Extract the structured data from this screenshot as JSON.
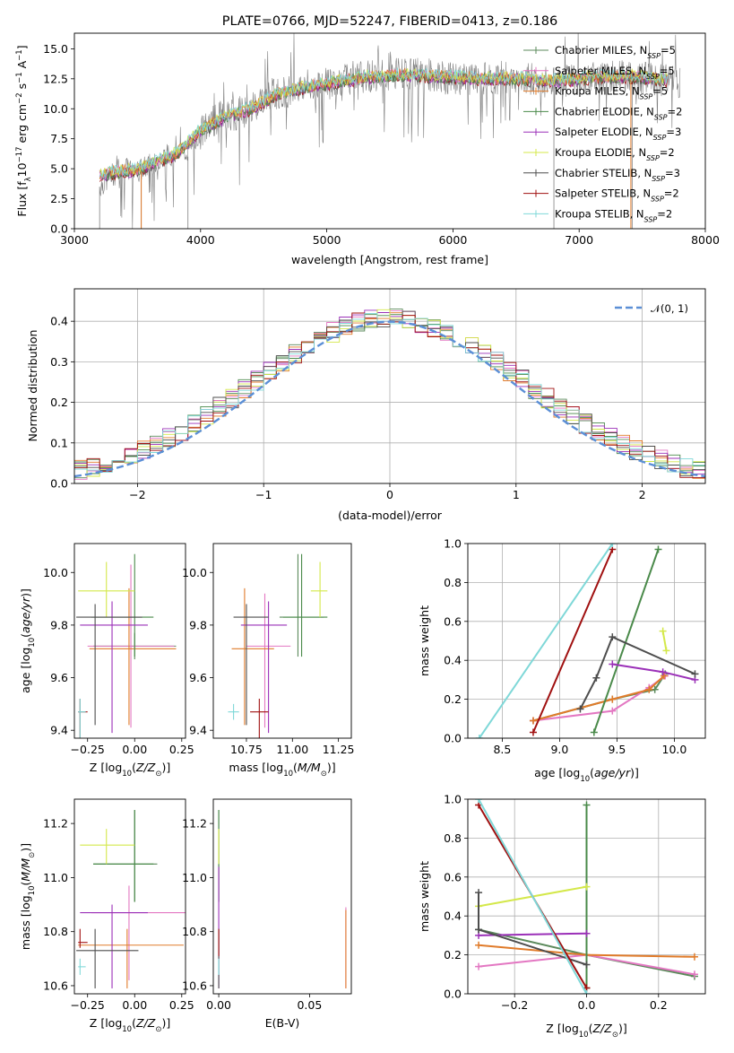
{
  "chart_data": [
    {
      "id": "spectrum",
      "type": "line",
      "title": "PLATE=0766, MJD=52247, FIBERID=0413, z=0.186",
      "xlabel": "wavelength [Angstrom, rest frame]",
      "ylabel": "Flux [f_λ 10^-17 erg cm^-2 s^-1 A^-1]",
      "xlim": [
        3000,
        8000
      ],
      "ylim": [
        0,
        16.3
      ],
      "xticks": [
        "3000",
        "4000",
        "5000",
        "6000",
        "7000",
        "8000"
      ],
      "yticks": [
        "0.0",
        "2.5",
        "5.0",
        "7.5",
        "10.0",
        "12.5",
        "15.0"
      ],
      "legend_position": "top-right",
      "observed_spectrum": {
        "color": "#808080",
        "x": [
          3200,
          3300,
          3400,
          3500,
          3600,
          3700,
          3800,
          3900,
          4000,
          4100,
          4200,
          4300,
          4400,
          4500,
          4600,
          4700,
          4800,
          4900,
          5000,
          5200,
          5400,
          5600,
          5800,
          6000,
          6200,
          6400,
          6600,
          6800,
          7000,
          7200,
          7400,
          7600,
          7800
        ],
        "y": [
          3.5,
          4.5,
          5.0,
          4.8,
          5.3,
          6.0,
          6.3,
          6.5,
          8.0,
          9.0,
          9.5,
          9.6,
          10.0,
          11.0,
          11.3,
          11.5,
          11.8,
          12.0,
          12.2,
          12.6,
          12.8,
          12.9,
          12.8,
          12.5,
          12.5,
          12.6,
          12.5,
          12.2,
          12.5,
          12.8,
          12.7,
          12.5,
          12.3
        ]
      },
      "series": [
        {
          "name": "Chabrier MILES, N_SSP=5",
          "color": "#5b8a5b"
        },
        {
          "name": "Salpeter MILES, N_SSP=5",
          "color": "#e377c2"
        },
        {
          "name": "Kroupa MILES, N_SSP=5",
          "color": "#e07b2a"
        },
        {
          "name": "Chabrier ELODIE, N_SSP=2",
          "color": "#4a8a4a"
        },
        {
          "name": "Salpeter ELODIE, N_SSP=3",
          "color": "#9b30b8"
        },
        {
          "name": "Kroupa ELODIE, N_SSP=2",
          "color": "#d4e84a"
        },
        {
          "name": "Chabrier STELIB, N_SSP=3",
          "color": "#4d4d4d"
        },
        {
          "name": "Salpeter STELIB, N_SSP=2",
          "color": "#a01010"
        },
        {
          "name": "Kroupa STELIB, N_SSP=2",
          "color": "#7fd8d8"
        }
      ],
      "model_curve": {
        "x": [
          3200,
          3500,
          3800,
          4000,
          4200,
          4400,
          4600,
          4800,
          5000,
          5300,
          5600,
          5900,
          6200,
          6500,
          6800,
          7100,
          7400,
          7700
        ],
        "y": [
          4.5,
          4.9,
          6.2,
          8.2,
          9.3,
          10.0,
          11.2,
          11.7,
          12.1,
          12.6,
          12.8,
          12.7,
          12.5,
          12.5,
          12.3,
          12.6,
          12.7,
          12.4
        ]
      }
    },
    {
      "id": "residuals",
      "type": "histogram",
      "xlabel": "(data-model)/error",
      "ylabel": "Normed distribution",
      "xlim": [
        -2.5,
        2.5
      ],
      "ylim": [
        0,
        0.48
      ],
      "xticks": [
        "−2",
        "−1",
        "0",
        "1",
        "2"
      ],
      "yticks": [
        "0.0",
        "0.1",
        "0.2",
        "0.3",
        "0.4"
      ],
      "grid": true,
      "legend_position": "top-right",
      "reference": {
        "name": "N(0,1)",
        "color": "#5b8fd6"
      },
      "bin_width": 0.1
    },
    {
      "id": "age-vs-Z",
      "type": "scatter",
      "xlabel": "Z [log10(Z/Z⊙)]",
      "ylabel": "age [log10(age/yr)]",
      "xlim": [
        -0.32,
        0.27
      ],
      "ylim": [
        9.37,
        10.11
      ],
      "xticks": [
        "−0.25",
        "0.00",
        "0.25"
      ],
      "yticks": [
        "9.4",
        "9.6",
        "9.8",
        "10.0"
      ],
      "points": [
        {
          "series": 0,
          "x": 0.0,
          "y": 9.72,
          "xerr": [
            0.22,
            0.22
          ],
          "yerr": [
            0.05,
            0.05
          ]
        },
        {
          "series": 1,
          "x": -0.02,
          "y": 9.72,
          "xerr": [
            0.23,
            0.23
          ],
          "yerr": [
            0.31,
            0.31
          ]
        },
        {
          "series": 2,
          "x": -0.03,
          "y": 9.71,
          "xerr": [
            0.21,
            0.25
          ],
          "yerr": [
            0.29,
            0.23
          ]
        },
        {
          "series": 3,
          "x": 0.0,
          "y": 9.83,
          "xerr": [
            0.23,
            0.1
          ],
          "yerr": [
            0.15,
            0.24
          ]
        },
        {
          "series": 4,
          "x": -0.12,
          "y": 9.8,
          "xerr": [
            0.17,
            0.19
          ],
          "yerr": [
            0.41,
            0.09
          ]
        },
        {
          "series": 5,
          "x": -0.15,
          "y": 9.93,
          "xerr": [
            0.15,
            0.15
          ],
          "yerr": [
            0.1,
            0.11
          ]
        },
        {
          "series": 6,
          "x": -0.21,
          "y": 9.83,
          "xerr": [
            0.1,
            0.25
          ],
          "yerr": [
            0.41,
            0.05
          ]
        },
        {
          "series": 7,
          "x": -0.29,
          "y": 9.47,
          "xerr": [
            0.01,
            0.04
          ],
          "yerr": [
            0.1,
            0.05
          ]
        },
        {
          "series": 8,
          "x": -0.29,
          "y": 9.47,
          "xerr": [
            0.01,
            0.03
          ],
          "yerr": [
            0.1,
            0.05
          ]
        }
      ]
    },
    {
      "id": "age-vs-mass",
      "type": "scatter",
      "xlabel": "mass [log10(M/M⊙)]",
      "ylabel": "",
      "xlim": [
        10.57,
        11.32
      ],
      "ylim": [
        9.37,
        10.11
      ],
      "xticks": [
        "10.75",
        "11.00",
        "11.25"
      ],
      "yticks": [
        "9.4",
        "9.6",
        "9.8",
        "10.0"
      ],
      "points": [
        {
          "series": 0,
          "x": 11.03,
          "y": 9.83,
          "xerr": [
            0.1,
            0.14
          ],
          "yerr": [
            0.15,
            0.24
          ]
        },
        {
          "series": 1,
          "x": 10.85,
          "y": 9.72,
          "xerr": [
            0.1,
            0.14
          ],
          "yerr": [
            0.31,
            0.2
          ]
        },
        {
          "series": 2,
          "x": 10.74,
          "y": 9.71,
          "xerr": [
            0.07,
            0.16
          ],
          "yerr": [
            0.29,
            0.23
          ]
        },
        {
          "series": 3,
          "x": 11.05,
          "y": 9.83,
          "xerr": [
            0.1,
            0.14
          ],
          "yerr": [
            0.15,
            0.24
          ]
        },
        {
          "series": 4,
          "x": 10.87,
          "y": 9.8,
          "xerr": [
            0.15,
            0.1
          ],
          "yerr": [
            0.41,
            0.09
          ]
        },
        {
          "series": 5,
          "x": 11.15,
          "y": 9.93,
          "xerr": [
            0.05,
            0.04
          ],
          "yerr": [
            0.1,
            0.11
          ]
        },
        {
          "series": 6,
          "x": 10.75,
          "y": 9.83,
          "xerr": [
            0.07,
            0.12
          ],
          "yerr": [
            0.41,
            0.05
          ]
        },
        {
          "series": 7,
          "x": 10.82,
          "y": 9.47,
          "xerr": [
            0.05,
            0.05
          ],
          "yerr": [
            0.1,
            0.05
          ]
        },
        {
          "series": 8,
          "x": 10.68,
          "y": 9.47,
          "xerr": [
            0.03,
            0.03
          ],
          "yerr": [
            0.03,
            0.03
          ]
        }
      ]
    },
    {
      "id": "weight-vs-age",
      "type": "line",
      "xlabel": "age [log10(age/yr)]",
      "ylabel": "mass weight",
      "xlim": [
        8.2,
        10.27
      ],
      "ylim": [
        0,
        1
      ],
      "xticks": [
        "8.5",
        "9.0",
        "9.5",
        "10.0"
      ],
      "yticks": [
        "0.0",
        "0.2",
        "0.4",
        "0.6",
        "0.8",
        "1.0"
      ],
      "grid": true,
      "series_lines": [
        {
          "series": 0,
          "x": [
            8.77,
            9.46,
            9.83,
            9.92
          ],
          "y": [
            0.09,
            0.2,
            0.25,
            0.33
          ]
        },
        {
          "series": 1,
          "x": [
            8.77,
            9.46,
            9.78,
            9.92
          ],
          "y": [
            0.09,
            0.14,
            0.26,
            0.32
          ]
        },
        {
          "series": 2,
          "x": [
            8.77,
            9.46,
            9.78,
            9.91
          ],
          "y": [
            0.09,
            0.2,
            0.25,
            0.32
          ]
        },
        {
          "series": 3,
          "x": [
            9.3,
            9.86
          ],
          "y": [
            0.03,
            0.97
          ]
        },
        {
          "series": 4,
          "x": [
            9.46,
            9.9,
            10.18
          ],
          "y": [
            0.38,
            0.34,
            0.3
          ]
        },
        {
          "series": 5,
          "x": [
            9.9,
            9.93
          ],
          "y": [
            0.55,
            0.45
          ]
        },
        {
          "series": 6,
          "x": [
            9.18,
            9.32,
            9.46,
            10.18
          ],
          "y": [
            0.15,
            0.31,
            0.52,
            0.33
          ]
        },
        {
          "series": 7,
          "x": [
            8.77,
            9.46
          ],
          "y": [
            0.03,
            0.97
          ]
        },
        {
          "series": 8,
          "x": [
            8.3,
            9.46
          ],
          "y": [
            0.0,
            1.0
          ]
        }
      ]
    },
    {
      "id": "mass-vs-Z",
      "type": "scatter",
      "xlabel": "Z [log10(Z/Z⊙)]",
      "ylabel": "mass [log10(M/M⊙)]",
      "xlim": [
        -0.32,
        0.27
      ],
      "ylim": [
        10.57,
        11.29
      ],
      "xticks": [
        "−0.25",
        "0.00",
        "0.25"
      ],
      "yticks": [
        "10.6",
        "10.8",
        "11.0",
        "11.2"
      ],
      "points": [
        {
          "series": 0,
          "x": 0.0,
          "y": 11.05,
          "xerr": [
            0.22,
            0.12
          ],
          "yerr": [
            0.14,
            0.2
          ]
        },
        {
          "series": 1,
          "x": -0.03,
          "y": 10.87,
          "xerr": [
            0.2,
            0.3
          ],
          "yerr": [
            0.25,
            0.1
          ]
        },
        {
          "series": 2,
          "x": -0.04,
          "y": 10.75,
          "xerr": [
            0.26,
            0.3
          ],
          "yerr": [
            0.16,
            0.06
          ]
        },
        {
          "series": 3,
          "x": 0.0,
          "y": 11.05,
          "xerr": [
            0.22,
            0.1
          ],
          "yerr": [
            0.14,
            0.2
          ]
        },
        {
          "series": 4,
          "x": -0.12,
          "y": 10.87,
          "xerr": [
            0.17,
            0.19
          ],
          "yerr": [
            0.28,
            0.03
          ]
        },
        {
          "series": 5,
          "x": -0.15,
          "y": 11.12,
          "xerr": [
            0.14,
            0.15
          ],
          "yerr": [
            0.07,
            0.06
          ]
        },
        {
          "series": 6,
          "x": -0.21,
          "y": 10.73,
          "xerr": [
            0.1,
            0.23
          ],
          "yerr": [
            0.14,
            0.08
          ]
        },
        {
          "series": 7,
          "x": -0.29,
          "y": 10.76,
          "xerr": [
            0.01,
            0.04
          ],
          "yerr": [
            0.02,
            0.05
          ]
        },
        {
          "series": 8,
          "x": -0.29,
          "y": 10.67,
          "xerr": [
            0.01,
            0.03
          ],
          "yerr": [
            0.03,
            0.03
          ]
        }
      ]
    },
    {
      "id": "mass-vs-EBV",
      "type": "scatter",
      "xlabel": "E(B-V)",
      "ylabel": "",
      "xlim": [
        -0.003,
        0.073
      ],
      "ylim": [
        10.57,
        11.29
      ],
      "xticks": [
        "0.00",
        "0.05"
      ],
      "yticks": [
        "10.6",
        "10.8",
        "11.0",
        "11.2"
      ],
      "points": [
        {
          "series": 0,
          "x": 0.0,
          "y": 11.05,
          "xerr": [
            0,
            0
          ],
          "yerr": [
            0.14,
            0.2
          ]
        },
        {
          "series": 1,
          "x": 0.07,
          "y": 10.75,
          "xerr": [
            0,
            0
          ],
          "yerr": [
            0.16,
            0.14
          ]
        },
        {
          "series": 2,
          "x": 0.07,
          "y": 10.74,
          "xerr": [
            0,
            0
          ],
          "yerr": [
            0.15,
            0.14
          ]
        },
        {
          "series": 3,
          "x": 0.0,
          "y": 11.05,
          "xerr": [
            0,
            0
          ],
          "yerr": [
            0.14,
            0.2
          ]
        },
        {
          "series": 4,
          "x": 0.0,
          "y": 10.87,
          "xerr": [
            0,
            0
          ],
          "yerr": [
            0.28,
            0.17
          ]
        },
        {
          "series": 5,
          "x": 0.0,
          "y": 11.12,
          "xerr": [
            0,
            0
          ],
          "yerr": [
            0.07,
            0.06
          ]
        },
        {
          "series": 6,
          "x": 0.0,
          "y": 10.73,
          "xerr": [
            0,
            0
          ],
          "yerr": [
            0.14,
            0.08
          ]
        },
        {
          "series": 7,
          "x": 0.0,
          "y": 10.76,
          "xerr": [
            0,
            0
          ],
          "yerr": [
            0.05,
            0.05
          ]
        },
        {
          "series": 8,
          "x": 0.0,
          "y": 10.67,
          "xerr": [
            0,
            0
          ],
          "yerr": [
            0.03,
            0.03
          ]
        }
      ]
    },
    {
      "id": "weight-vs-Z",
      "type": "line",
      "xlabel": "Z [log10(Z/Z⊙)]",
      "ylabel": "mass weight",
      "xlim": [
        -0.33,
        0.33
      ],
      "ylim": [
        0,
        1
      ],
      "xticks": [
        "−0.2",
        "0.0",
        "0.2"
      ],
      "yticks": [
        "0.0",
        "0.2",
        "0.4",
        "0.6",
        "0.8",
        "1.0"
      ],
      "grid": true,
      "series_lines": [
        {
          "series": 0,
          "x": [
            -0.3,
            0.0,
            0.3
          ],
          "y": [
            0.33,
            0.2,
            0.09
          ]
        },
        {
          "series": 1,
          "x": [
            -0.3,
            0.0,
            0.3
          ],
          "y": [
            0.14,
            0.2,
            0.1
          ]
        },
        {
          "series": 2,
          "x": [
            -0.3,
            0.0,
            0.3
          ],
          "y": [
            0.25,
            0.2,
            0.19
          ]
        },
        {
          "series": 3,
          "x": [
            0.0,
            0.0
          ],
          "y": [
            0.03,
            0.97
          ]
        },
        {
          "series": 4,
          "x": [
            -0.3,
            0.0
          ],
          "y": [
            0.3,
            0.31
          ]
        },
        {
          "series": 5,
          "x": [
            -0.3,
            0.0
          ],
          "y": [
            0.45,
            0.55
          ]
        },
        {
          "series": 6,
          "x": [
            -0.3,
            -0.3,
            0.0
          ],
          "y": [
            0.52,
            0.33,
            0.15
          ]
        },
        {
          "series": 7,
          "x": [
            -0.3,
            0.0
          ],
          "y": [
            0.97,
            0.03
          ]
        },
        {
          "series": 8,
          "x": [
            -0.3,
            0.0
          ],
          "y": [
            1.0,
            0.0
          ]
        }
      ]
    }
  ]
}
